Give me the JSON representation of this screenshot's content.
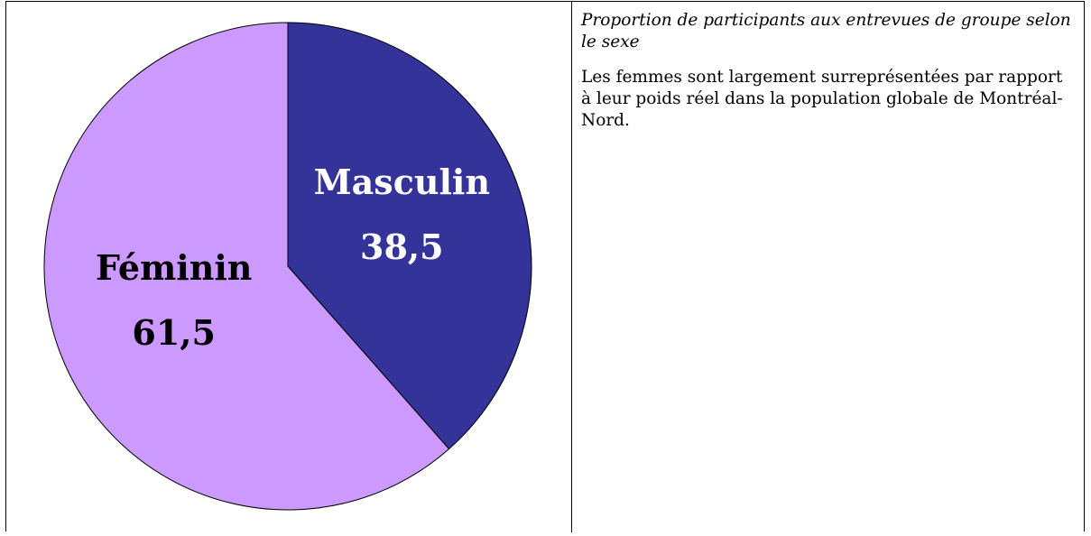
{
  "chart_data": {
    "type": "pie",
    "categories": [
      "Masculin",
      "Féminin"
    ],
    "values": [
      38.5,
      61.5
    ],
    "value_labels": [
      "38,5",
      "61,5"
    ],
    "colors": [
      "#333399",
      "#cc99ff"
    ]
  },
  "caption": "Proportion de participants aux entrevues de groupe selon le sexe",
  "description": "Les femmes sont largement surreprésentées par rapport à leur poids réel dans la population globale de Montréal-Nord."
}
